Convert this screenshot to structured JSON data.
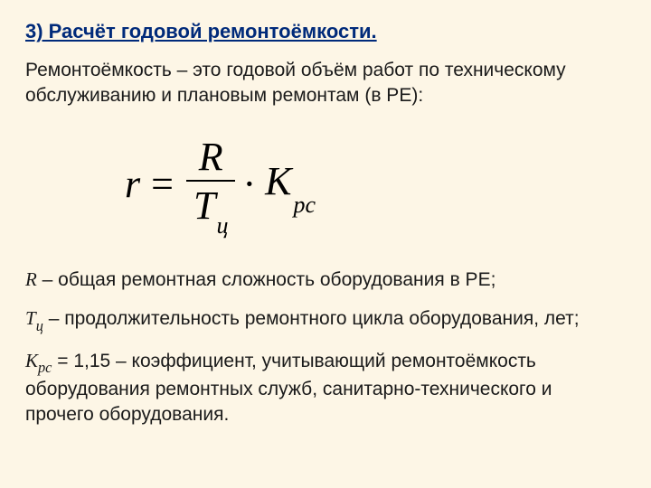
{
  "heading": "3) Расчёт годовой ремонтоёмкости.",
  "intro": "Ремонтоёмкость – это годовой объём работ по техническому обслуживанию и плановым ремонтам (в РЕ):",
  "formula": {
    "lhs": "r",
    "eq": "=",
    "numerator": "R",
    "den_main": "T",
    "den_sub": "ц",
    "cdot": "·",
    "k_main": "K",
    "k_sub": "рс"
  },
  "defs": {
    "r_sym": "R",
    "r_text": " – общая ремонтная сложность оборудования в РЕ;",
    "t_main": "Т",
    "t_sub": "ц",
    "t_text": " – продолжительность ремонтного цикла оборудования, лет;",
    "k_main": "К",
    "k_sub": "рс",
    "k_text_a": " = 1,15 – коэффициент, учитывающий ремонтоёмкость оборудования ремонтных служб, санитарно-технического и прочего оборудования."
  },
  "colors": {
    "background": "#fdf6e6",
    "heading": "#002a7a",
    "body_text": "#1a1a1a",
    "formula": "#000000"
  },
  "fonts": {
    "body_family": "Arial",
    "body_size_pt": 16,
    "heading_size_pt": 17,
    "formula_family": "Times New Roman",
    "formula_size_pt": 33
  }
}
